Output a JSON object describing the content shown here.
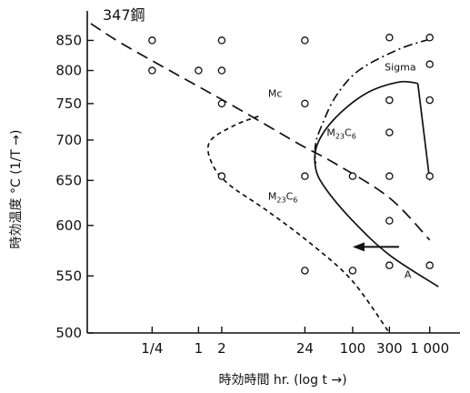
{
  "chart_data": {
    "type": "scatter",
    "title": "347鋼",
    "xlabel": "時効時間 hr. (log t →)",
    "ylabel": "時効温度 °C (1/T →)",
    "x_scale": "log",
    "y_scale": "reciprocal-absolute-temperature",
    "xlim": [
      0.036,
      2100
    ],
    "ylim": [
      500,
      890
    ],
    "x_ticks": [
      {
        "value": 0.25,
        "label": "1/4"
      },
      {
        "value": 1,
        "label": "1"
      },
      {
        "value": 2,
        "label": "2"
      },
      {
        "value": 24,
        "label": "24"
      },
      {
        "value": 100,
        "label": "100"
      },
      {
        "value": 300,
        "label": "300"
      },
      {
        "value": 1000,
        "label": "1 000"
      }
    ],
    "y_ticks": [
      {
        "value": 500,
        "label": "500"
      },
      {
        "value": 550,
        "label": "550"
      },
      {
        "value": 600,
        "label": "600"
      },
      {
        "value": 650,
        "label": "650"
      },
      {
        "value": 700,
        "label": "700"
      },
      {
        "value": 750,
        "label": "750"
      },
      {
        "value": 800,
        "label": "800"
      },
      {
        "value": 850,
        "label": "850"
      }
    ],
    "grid": false,
    "legend": "none",
    "points": [
      {
        "x": 0.25,
        "y": 850
      },
      {
        "x": 0.25,
        "y": 800
      },
      {
        "x": 1,
        "y": 800
      },
      {
        "x": 2,
        "y": 850
      },
      {
        "x": 2,
        "y": 800
      },
      {
        "x": 2,
        "y": 750
      },
      {
        "x": 2,
        "y": 655
      },
      {
        "x": 24,
        "y": 850
      },
      {
        "x": 24,
        "y": 750
      },
      {
        "x": 24,
        "y": 655
      },
      {
        "x": 24,
        "y": 555
      },
      {
        "x": 100,
        "y": 655
      },
      {
        "x": 100,
        "y": 555
      },
      {
        "x": 300,
        "y": 855
      },
      {
        "x": 300,
        "y": 755
      },
      {
        "x": 300,
        "y": 710
      },
      {
        "x": 300,
        "y": 655
      },
      {
        "x": 300,
        "y": 605
      },
      {
        "x": 300,
        "y": 560
      },
      {
        "x": 1000,
        "y": 855
      },
      {
        "x": 1000,
        "y": 810
      },
      {
        "x": 1000,
        "y": 755
      },
      {
        "x": 1000,
        "y": 655
      },
      {
        "x": 1000,
        "y": 560
      }
    ],
    "curves": [
      {
        "name": "Mc",
        "style": "long-dash",
        "label": "Mc",
        "points": [
          [
            0.04,
            880
          ],
          [
            0.1,
            845
          ],
          [
            0.5,
            795
          ],
          [
            3,
            745
          ],
          [
            20,
            695
          ],
          [
            60,
            670
          ],
          [
            300,
            630
          ],
          [
            1000,
            585
          ]
        ]
      },
      {
        "name": "M23C6-lower",
        "style": "short-dash",
        "label": "M23C6",
        "points": [
          [
            6,
            732
          ],
          [
            3,
            720
          ],
          [
            1.4,
            698
          ],
          [
            1.5,
            670
          ],
          [
            2.5,
            645
          ],
          [
            8,
            615
          ],
          [
            30,
            580
          ],
          [
            100,
            545
          ],
          [
            300,
            500
          ]
        ]
      },
      {
        "name": "M23C6-upper",
        "style": "solid",
        "label": "M23C6",
        "points": [
          [
            700,
            780
          ],
          [
            400,
            782
          ],
          [
            150,
            765
          ],
          [
            60,
            730
          ],
          [
            35,
            695
          ],
          [
            33,
            665
          ],
          [
            45,
            640
          ],
          [
            100,
            605
          ],
          [
            300,
            570
          ],
          [
            1300,
            540
          ]
        ]
      },
      {
        "name": "M23C6-branch",
        "style": "solid",
        "points": [
          [
            700,
            780
          ],
          [
            1000,
            650
          ]
        ]
      },
      {
        "name": "Sigma",
        "style": "dash-dot",
        "label": "Sigma",
        "points": [
          [
            1000,
            852
          ],
          [
            400,
            835
          ],
          [
            120,
            800
          ],
          [
            60,
            760
          ],
          [
            40,
            720
          ],
          [
            33,
            695
          ],
          [
            33,
            670
          ]
        ]
      }
    ],
    "curve_labels": [
      {
        "text": "Mc",
        "x": 8,
        "y": 760
      },
      {
        "text": "Sigma",
        "x": 260,
        "y": 800
      },
      {
        "text": "M",
        "sub": "23",
        "mid": "C",
        "sub2": "6",
        "x": 46,
        "y": 705
      },
      {
        "text": "M",
        "sub": "23",
        "mid": "C",
        "sub2": "6",
        "x": 8,
        "y": 628
      },
      {
        "text": "A",
        "x": 470,
        "y": 548
      }
    ],
    "arrow": {
      "from": [
        400,
        578
      ],
      "to": [
        100,
        578
      ]
    }
  }
}
